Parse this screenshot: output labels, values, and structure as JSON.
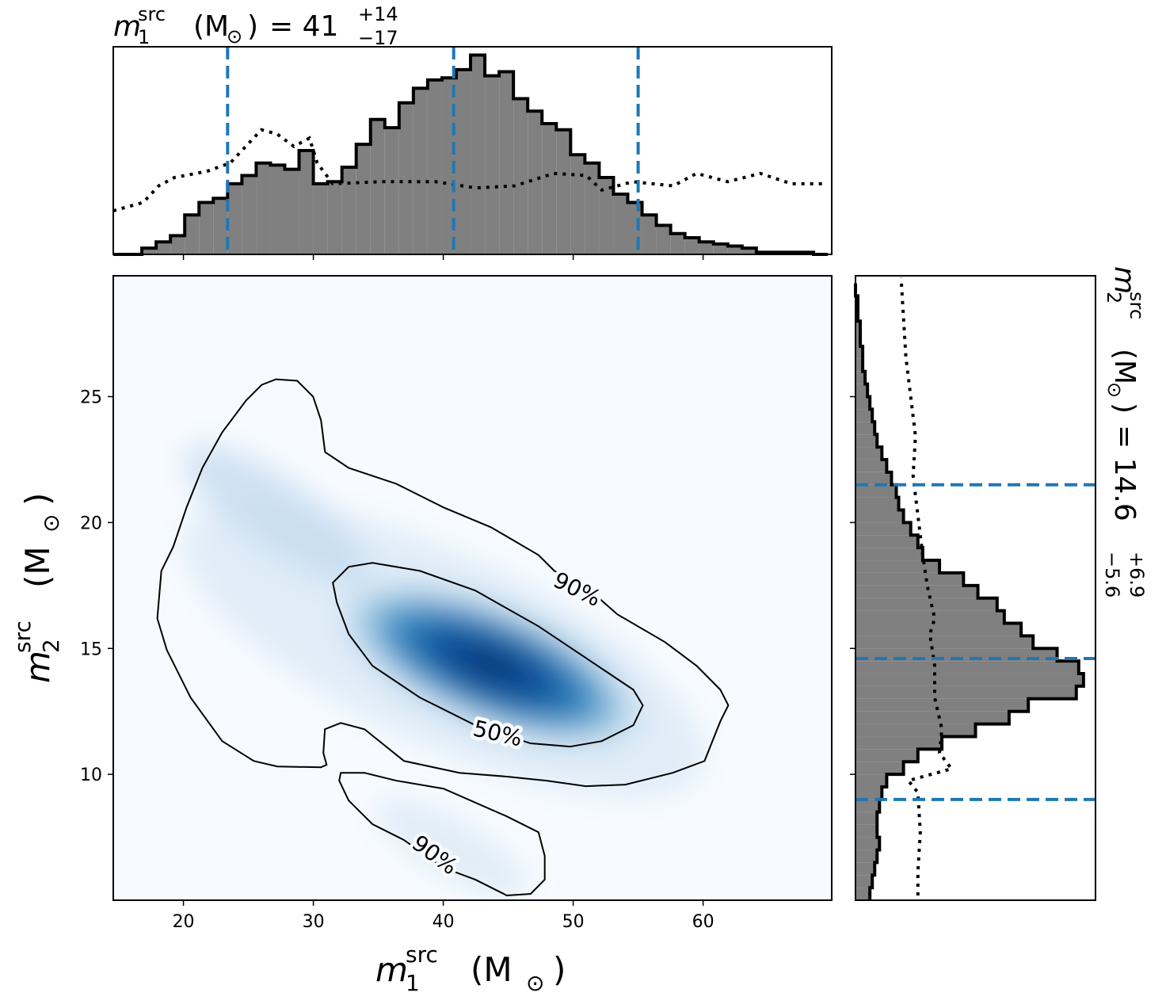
{
  "chart_data": [
    {
      "type": "histogram",
      "title": {
        "var": "m",
        "sub": "1",
        "sup": "src",
        "unit": "(M",
        "unit_sub": "⊙",
        "close": ")",
        "value": "= 41",
        "plus": "+14",
        "minus": "−17"
      },
      "bins": [
        14.6,
        15.7,
        16.8,
        17.9,
        19.0,
        20.1,
        21.2,
        22.3,
        23.4,
        24.5,
        25.6,
        26.7,
        27.8,
        28.9,
        30.0,
        31.1,
        32.2,
        33.3,
        34.4,
        35.5,
        36.6,
        37.7,
        38.8,
        39.9,
        41.0,
        42.1,
        43.2,
        44.3,
        45.4,
        46.5,
        47.6,
        48.7,
        49.8,
        50.9,
        52.0,
        53.1,
        54.2,
        55.3,
        56.4,
        57.5,
        58.6,
        59.7,
        60.8,
        61.9,
        63.0,
        64.1,
        65.2,
        66.3,
        67.4,
        68.5,
        69.6
      ],
      "values": [
        0,
        0,
        3,
        6,
        9,
        19,
        25,
        27,
        34,
        38,
        44,
        43,
        41,
        50,
        34,
        35,
        42,
        53,
        65,
        61,
        73,
        80,
        84,
        85,
        89,
        96,
        86,
        88,
        75,
        69,
        63,
        60,
        48,
        44,
        37,
        29,
        25,
        19,
        14,
        10,
        8,
        6,
        5,
        4,
        3,
        1,
        1,
        1,
        1,
        0
      ],
      "color": "#808080",
      "edgecolor": "#000000",
      "prior": {
        "x": [
          14.6,
          16.9,
          18.1,
          19.3,
          21.8,
          23.6,
          24.8,
          26.0,
          27.2,
          28.5,
          29.7,
          30.3,
          31.5,
          35.2,
          39.4,
          42.5,
          45.5,
          48.5,
          51.0,
          52.2,
          54.6,
          57.7,
          59.5,
          61.9,
          64.4,
          66.8,
          69.2
        ],
        "values": [
          21,
          25,
          33,
          37,
          40,
          44,
          52,
          60,
          58,
          52,
          56,
          44,
          34,
          35,
          35,
          32,
          33,
          39,
          38,
          31,
          35,
          33,
          39,
          35,
          39,
          34,
          34
        ],
        "color": "#000000"
      },
      "vlines": [
        23.4,
        40.8,
        55.0
      ],
      "vline_color": "#1f77b4",
      "xlim": [
        14.6,
        69.9
      ],
      "ylim": [
        0,
        100
      ],
      "xticks": [
        20,
        30,
        40,
        50,
        60
      ]
    },
    {
      "type": "contour",
      "xlabel": {
        "var": "m",
        "sub": "1",
        "sup": "src",
        "unit": "(M",
        "unit_sub": "⊙",
        "close": ")"
      },
      "ylabel": {
        "var": "m",
        "sub": "2",
        "sup": "src",
        "unit": "(M",
        "unit_sub": "⊙",
        "close": ")"
      },
      "xlim": [
        14.6,
        69.9
      ],
      "ylim": [
        5,
        29.8
      ],
      "xticks": [
        20,
        30,
        40,
        50,
        60
      ],
      "yticks": [
        10,
        15,
        20,
        25
      ],
      "cmap": "Blues",
      "line_color": "#000000",
      "contours": [
        {
          "label": "90%",
          "x": [
            27.12,
            28.76,
            29.98,
            30.59,
            30.9,
            32.72,
            36.37,
            40.02,
            43.68,
            47.33,
            48.55,
            50.98,
            53.41,
            57.07,
            59.5,
            61.33,
            61.94,
            61.33,
            60.11,
            57.67,
            54.02,
            50.98,
            47.94,
            44.89,
            41.24,
            36.98,
            33.94,
            32.11,
            30.89,
            30.77,
            31.02,
            30.59,
            27.24,
            25.42,
            22.98,
            20.55,
            18.72,
            17.99,
            18.3,
            19.21,
            20.24,
            21.46,
            22.98,
            24.81,
            26.03
          ],
          "y": [
            25.69,
            25.63,
            25.0,
            24.06,
            22.8,
            22.17,
            21.54,
            20.6,
            19.81,
            18.71,
            18.08,
            17.45,
            16.35,
            15.25,
            14.31,
            13.36,
            12.74,
            12.11,
            10.53,
            10.06,
            9.59,
            9.53,
            9.75,
            9.91,
            10.06,
            10.53,
            11.79,
            12.04,
            11.79,
            10.85,
            10.38,
            10.28,
            10.31,
            10.53,
            11.32,
            13.05,
            14.94,
            16.19,
            18.08,
            19.03,
            20.6,
            22.17,
            23.58,
            24.84,
            25.47
          ]
        },
        {
          "label": "90%",
          "x": [
            32.11,
            33.94,
            36.37,
            40.02,
            44.89,
            47.33,
            47.81,
            47.81,
            46.72,
            44.89,
            42.46,
            40.02,
            36.98,
            34.55,
            32.72,
            31.99
          ],
          "y": [
            10.06,
            10.06,
            9.75,
            9.43,
            8.33,
            7.7,
            6.76,
            5.82,
            5.25,
            5.19,
            5.82,
            6.29,
            7.39,
            8.02,
            8.96,
            9.75
          ]
        },
        {
          "label": "50%",
          "x": [
            31.5,
            32.72,
            34.55,
            38.2,
            42.46,
            47.33,
            50.98,
            54.63,
            55.36,
            54.63,
            52.2,
            49.76,
            46.72,
            42.46,
            38.2,
            34.55,
            32.72,
            31.81
          ],
          "y": [
            17.61,
            18.24,
            18.4,
            18.08,
            17.3,
            15.88,
            14.62,
            13.36,
            12.74,
            11.95,
            11.32,
            11.1,
            11.23,
            11.95,
            13.05,
            14.31,
            15.57,
            16.82
          ]
        }
      ]
    },
    {
      "type": "histogram",
      "orientation": "horizontal",
      "title": {
        "var": "m",
        "sub": "2",
        "sup": "src",
        "unit": "(M",
        "unit_sub": "⊙",
        "close": ")",
        "value": "= 14.6",
        "plus": "+6.9",
        "minus": "−5.6"
      },
      "bins": [
        5,
        5.5,
        6,
        6.5,
        7,
        7.5,
        8,
        8.5,
        9,
        9.5,
        10,
        10.5,
        11,
        11.5,
        12,
        12.5,
        13,
        13.5,
        14,
        14.5,
        15,
        15.5,
        16,
        16.5,
        17,
        17.5,
        18,
        18.5,
        19,
        19.5,
        20,
        20.5,
        21,
        21.5,
        22,
        22.5,
        23,
        23.5,
        24,
        24.5,
        25,
        25.5,
        26,
        26.5,
        27,
        27.5,
        28,
        28.5,
        29,
        29.5
      ],
      "values": [
        6,
        7,
        8,
        9,
        10,
        9,
        9,
        10,
        11,
        13,
        20,
        26,
        36,
        50,
        64,
        72,
        92,
        95,
        93,
        84,
        74,
        69,
        62,
        59,
        51,
        45,
        35,
        28,
        26,
        23,
        20,
        18,
        17,
        15,
        13,
        11,
        9,
        8,
        7,
        6,
        5,
        4,
        3,
        3,
        2,
        2,
        1,
        1,
        0
      ],
      "color": "#808080",
      "edgecolor": "#000000",
      "prior": {
        "y": [
          5.19,
          6.13,
          7.7,
          9.28,
          9.75,
          10.22,
          10.85,
          11.79,
          13.05,
          14.31,
          15.57,
          16.19,
          17.45,
          18.71,
          20.28,
          21.86,
          23.43,
          25.0,
          26.57,
          28.14,
          29.72
        ],
        "values": [
          26,
          26,
          27,
          26,
          22,
          40,
          35,
          36,
          33,
          33,
          31,
          33,
          30,
          28,
          26,
          24,
          25,
          23,
          21,
          20,
          19
        ],
        "color": "#000000"
      },
      "hlines": [
        21.5,
        14.6,
        9.0
      ],
      "hline_color": "#1f77b4",
      "xlim": [
        0,
        100
      ],
      "ylim": [
        5,
        29.8
      ],
      "yticks": [
        10,
        15,
        20,
        25
      ]
    }
  ]
}
